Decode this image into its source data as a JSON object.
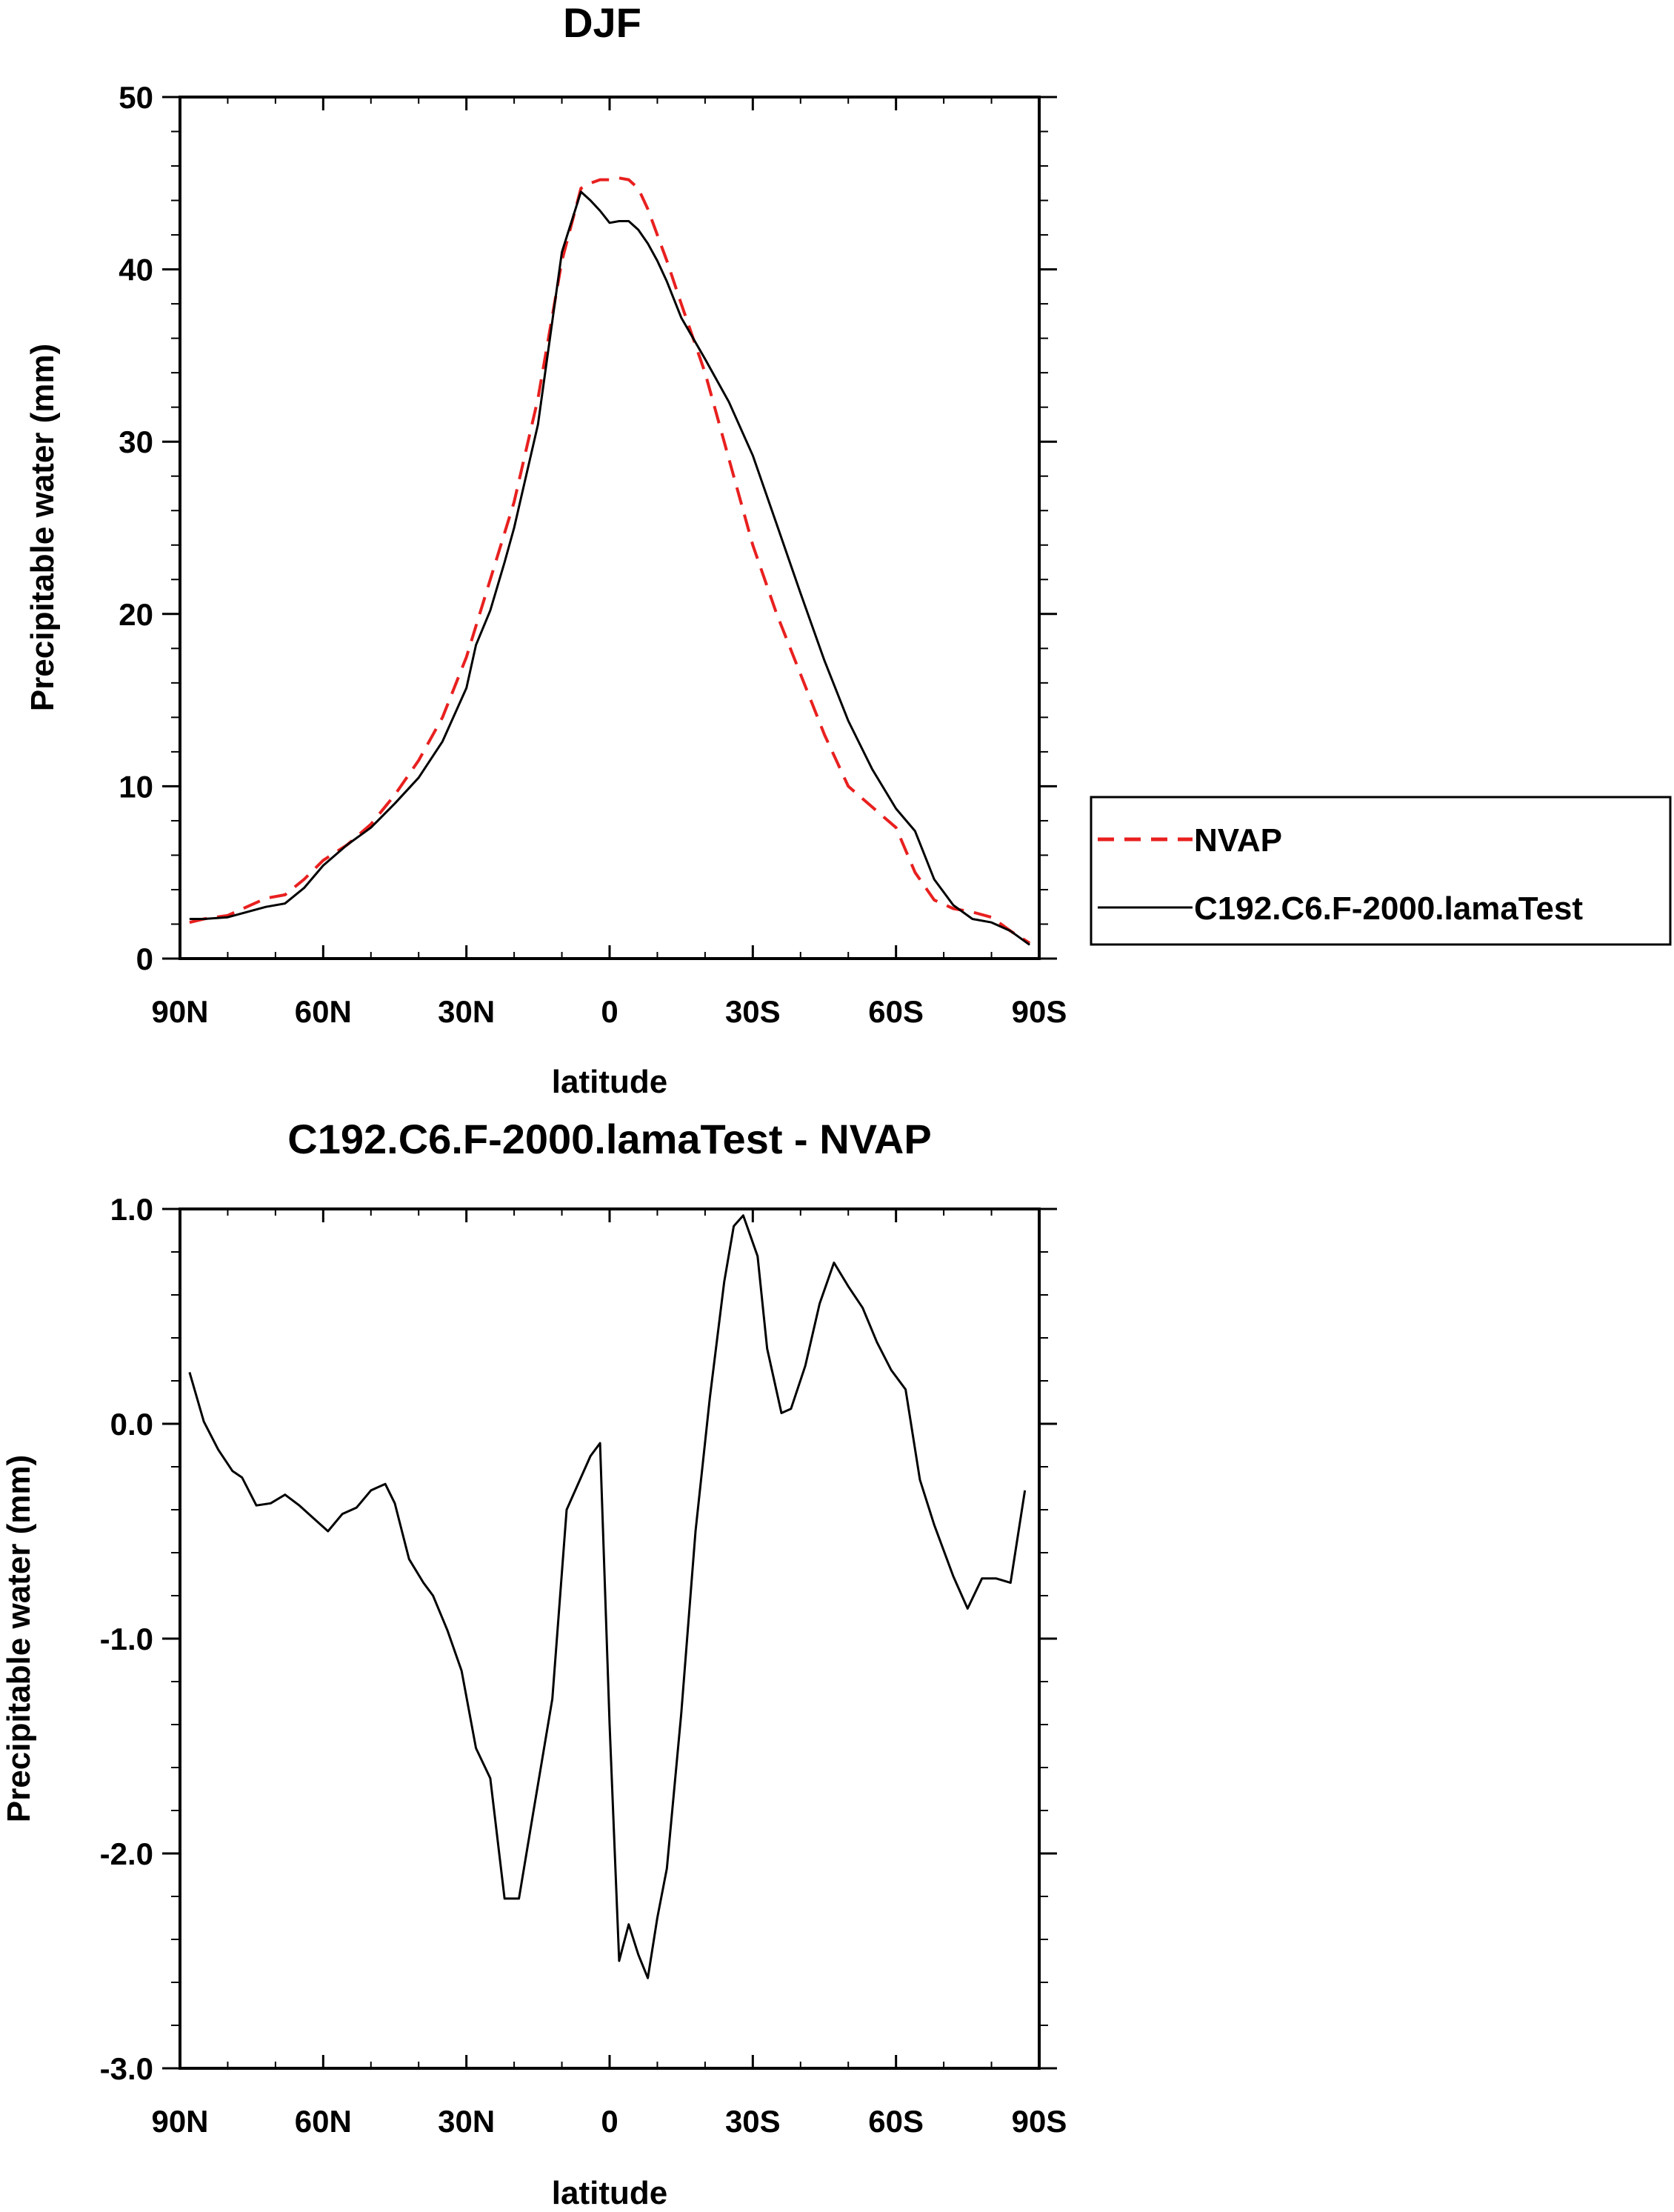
{
  "chart_data": [
    {
      "type": "line",
      "title": "DJF",
      "xlabel": "latitude",
      "ylabel": "Precipitable water (mm)",
      "xlim": [
        90,
        -90
      ],
      "ylim": [
        0,
        50
      ],
      "x_ticks": [
        90,
        60,
        30,
        0,
        -30,
        -60,
        -90
      ],
      "x_tick_labels": [
        "90N",
        "60N",
        "30N",
        "0",
        "30S",
        "60S",
        "90S"
      ],
      "y_ticks": [
        0,
        10,
        20,
        30,
        40,
        50
      ],
      "y_tick_labels": [
        "0",
        "10",
        "20",
        "30",
        "40",
        "50"
      ],
      "legend": [
        "NVAP",
        "C192.C6.F-2000.lamaTest"
      ],
      "series": [
        {
          "name": "NVAP",
          "color": "#e8201f",
          "dash": "dashed",
          "x": [
            88,
            85,
            80,
            76,
            72,
            68,
            64,
            60,
            55,
            50,
            45,
            40,
            35,
            30,
            25,
            20,
            15,
            10,
            6,
            4,
            2,
            0,
            -2,
            -4,
            -6,
            -8,
            -10,
            -12,
            -15,
            -20,
            -25,
            -30,
            -35,
            -40,
            -45,
            -50,
            -55,
            -60,
            -64,
            -68,
            -72,
            -76,
            -80,
            -84,
            -88
          ],
          "values": [
            2.1,
            2.3,
            2.5,
            3.0,
            3.5,
            3.7,
            4.6,
            5.7,
            6.6,
            7.8,
            9.5,
            11.5,
            14.0,
            17.5,
            22.0,
            26.5,
            32.5,
            40.5,
            44.7,
            45.0,
            45.2,
            45.2,
            45.3,
            45.2,
            44.7,
            43.5,
            42.0,
            40.5,
            38.0,
            34.0,
            29.0,
            24.0,
            20.0,
            16.5,
            13.0,
            10.0,
            8.8,
            7.6,
            5.0,
            3.4,
            2.9,
            2.7,
            2.4,
            1.6,
            0.9
          ]
        },
        {
          "name": "C192.C6.F-2000.lamaTest",
          "color": "#000000",
          "dash": "solid",
          "x": [
            88,
            85,
            80,
            76,
            72,
            68,
            64,
            60,
            55,
            50,
            45,
            40,
            35,
            30,
            28,
            25,
            22,
            20,
            15,
            10,
            6,
            4,
            2,
            0,
            -2,
            -4,
            -6,
            -8,
            -10,
            -12,
            -15,
            -20,
            -25,
            -30,
            -35,
            -40,
            -45,
            -50,
            -55,
            -60,
            -64,
            -68,
            -72,
            -76,
            -80,
            -84,
            -88
          ],
          "values": [
            2.3,
            2.3,
            2.4,
            2.7,
            3.0,
            3.2,
            4.1,
            5.4,
            6.6,
            7.6,
            9.0,
            10.5,
            12.6,
            15.7,
            18.2,
            20.2,
            23.0,
            25.0,
            31.0,
            41.0,
            44.5,
            44.0,
            43.4,
            42.7,
            42.8,
            42.8,
            42.3,
            41.5,
            40.5,
            39.3,
            37.2,
            34.8,
            32.3,
            29.2,
            25.2,
            21.2,
            17.3,
            13.8,
            11.0,
            8.7,
            7.4,
            4.6,
            3.1,
            2.3,
            2.1,
            1.6,
            0.8
          ]
        }
      ]
    },
    {
      "type": "line",
      "title": "C192.C6.F-2000.lamaTest - NVAP",
      "xlabel": "latitude",
      "ylabel": "Precipitable water (mm)",
      "xlim": [
        90,
        -90
      ],
      "ylim": [
        -3.0,
        1.0
      ],
      "x_ticks": [
        90,
        60,
        30,
        0,
        -30,
        -60,
        -90
      ],
      "x_tick_labels": [
        "90N",
        "60N",
        "30N",
        "0",
        "30S",
        "60S",
        "90S"
      ],
      "y_ticks": [
        -3,
        -2,
        -1,
        0,
        1
      ],
      "y_tick_labels": [
        "-3.0",
        "-2.0",
        "-1.0",
        "0.0",
        "1.0"
      ],
      "series": [
        {
          "name": "C192.C6.F-2000.lamaTest - NVAP",
          "color": "#000000",
          "dash": "solid",
          "x": [
            88,
            85,
            82,
            79,
            77,
            74,
            71,
            68,
            65,
            62,
            59,
            56,
            53,
            50,
            47,
            45,
            42,
            39,
            37,
            34,
            31,
            28,
            25,
            22,
            19,
            16,
            12,
            9,
            6,
            4,
            2,
            0,
            -2,
            -4,
            -6,
            -8,
            -10,
            -12,
            -15,
            -18,
            -21,
            -24,
            -26,
            -28,
            -31,
            -33,
            -36,
            -38,
            -41,
            -44,
            -47,
            -50,
            -53,
            -56,
            -59,
            -62,
            -65,
            -68,
            -72,
            -75,
            -78,
            -81,
            -84,
            -87
          ],
          "values": [
            0.24,
            0.01,
            -0.12,
            -0.22,
            -0.25,
            -0.38,
            -0.37,
            -0.33,
            -0.38,
            -0.44,
            -0.5,
            -0.42,
            -0.39,
            -0.31,
            -0.28,
            -0.37,
            -0.63,
            -0.74,
            -0.8,
            -0.96,
            -1.15,
            -1.51,
            -1.65,
            -2.21,
            -2.21,
            -1.81,
            -1.28,
            -0.4,
            -0.25,
            -0.15,
            -0.09,
            -1.4,
            -2.5,
            -2.33,
            -2.47,
            -2.58,
            -2.3,
            -2.07,
            -1.35,
            -0.5,
            0.12,
            0.66,
            0.92,
            0.97,
            0.78,
            0.35,
            0.05,
            0.07,
            0.27,
            0.56,
            0.75,
            0.64,
            0.54,
            0.38,
            0.25,
            0.16,
            -0.26,
            -0.47,
            -0.71,
            -0.86,
            -0.72,
            -0.72,
            -0.74,
            -0.31
          ]
        }
      ]
    }
  ]
}
